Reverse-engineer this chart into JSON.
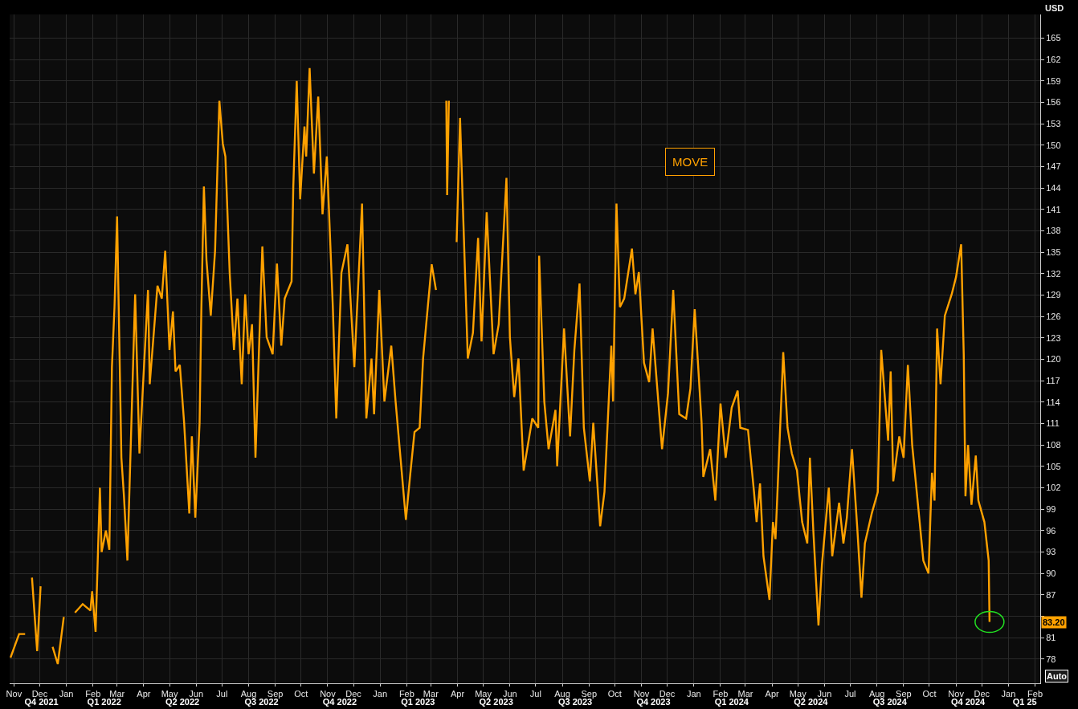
{
  "chart_data": {
    "type": "line",
    "ylabel": "USD",
    "x": [
      "2021-10-28",
      "2021-11-07",
      "2021-11-14",
      "2021-11-17",
      "2021-11-22",
      "2021-11-28",
      "2021-12-02",
      "2021-12-07",
      "2021-12-16",
      "2021-12-22",
      "2021-12-29",
      "2022-01-04",
      "2022-01-11",
      "2022-01-20",
      "2022-01-29",
      "2022-01-31",
      "2022-02-04",
      "2022-02-09",
      "2022-02-11",
      "2022-02-16",
      "2022-02-20",
      "2022-02-23",
      "2022-02-26",
      "2022-03-01",
      "2022-03-06",
      "2022-03-09",
      "2022-03-13",
      "2022-03-22",
      "2022-03-27",
      "2022-04-06",
      "2022-04-08",
      "2022-04-17",
      "2022-04-22",
      "2022-04-26",
      "2022-05-01",
      "2022-05-05",
      "2022-05-08",
      "2022-05-13",
      "2022-05-18",
      "2022-05-24",
      "2022-05-27",
      "2022-05-31",
      "2022-06-05",
      "2022-06-07",
      "2022-06-10",
      "2022-06-13",
      "2022-06-18",
      "2022-06-23",
      "2022-06-28",
      "2022-07-02",
      "2022-07-05",
      "2022-07-10",
      "2022-07-15",
      "2022-07-19",
      "2022-07-24",
      "2022-07-28",
      "2022-08-01",
      "2022-08-05",
      "2022-08-09",
      "2022-08-17",
      "2022-08-22",
      "2022-08-29",
      "2022-09-03",
      "2022-09-08",
      "2022-09-12",
      "2022-09-20",
      "2022-09-22",
      "2022-09-26",
      "2022-09-30",
      "2022-10-05",
      "2022-10-07",
      "2022-10-11",
      "2022-10-16",
      "2022-10-21",
      "2022-10-26",
      "2022-10-31",
      "2022-11-07",
      "2022-11-11",
      "2022-11-17",
      "2022-11-24",
      "2022-12-02",
      "2022-12-11",
      "2022-12-16",
      "2022-12-22",
      "2022-12-25",
      "2022-12-31",
      "2023-01-06",
      "2023-01-14",
      "2023-01-19",
      "2023-01-31",
      "2023-02-05",
      "2023-02-10",
      "2023-02-16",
      "2023-02-20",
      "2023-03-02",
      "2023-03-07",
      "2023-03-10",
      "2023-03-18",
      "2023-03-19",
      "2023-03-20",
      "2023-03-22",
      "2023-03-24",
      "2023-03-31",
      "2023-04-04",
      "2023-04-13",
      "2023-04-19",
      "2023-04-25",
      "2023-04-29",
      "2023-05-05",
      "2023-05-13",
      "2023-05-19",
      "2023-05-28",
      "2023-06-01",
      "2023-06-06",
      "2023-06-11",
      "2023-06-17",
      "2023-06-27",
      "2023-07-04",
      "2023-07-05",
      "2023-07-11",
      "2023-07-16",
      "2023-07-24",
      "2023-07-26",
      "2023-08-03",
      "2023-08-10",
      "2023-08-15",
      "2023-08-21",
      "2023-08-26",
      "2023-09-02",
      "2023-09-06",
      "2023-09-14",
      "2023-09-19",
      "2023-09-27",
      "2023-09-29",
      "2023-10-03",
      "2023-10-07",
      "2023-10-12",
      "2023-10-21",
      "2023-10-25",
      "2023-10-29",
      "2023-11-04",
      "2023-11-10",
      "2023-11-14",
      "2023-11-25",
      "2023-12-02",
      "2023-12-08",
      "2023-12-15",
      "2023-12-23",
      "2023-12-28",
      "2024-01-02",
      "2024-01-10",
      "2024-01-12",
      "2024-01-20",
      "2024-01-26",
      "2024-02-01",
      "2024-02-07",
      "2024-02-14",
      "2024-02-21",
      "2024-02-24",
      "2024-03-04",
      "2024-03-11",
      "2024-03-14",
      "2024-03-18",
      "2024-03-22",
      "2024-03-29",
      "2024-04-02",
      "2024-04-05",
      "2024-04-10",
      "2024-04-14",
      "2024-04-19",
      "2024-04-24",
      "2024-04-30",
      "2024-05-06",
      "2024-05-12",
      "2024-05-15",
      "2024-05-19",
      "2024-05-25",
      "2024-05-29",
      "2024-06-06",
      "2024-06-10",
      "2024-06-18",
      "2024-06-23",
      "2024-06-27",
      "2024-07-03",
      "2024-07-09",
      "2024-07-14",
      "2024-07-18",
      "2024-07-26",
      "2024-08-02",
      "2024-08-06",
      "2024-08-14",
      "2024-08-17",
      "2024-08-20",
      "2024-08-27",
      "2024-09-01",
      "2024-09-06",
      "2024-09-11",
      "2024-09-19",
      "2024-09-24",
      "2024-09-30",
      "2024-10-04",
      "2024-10-07",
      "2024-10-10",
      "2024-10-14",
      "2024-10-19",
      "2024-10-27",
      "2024-11-01",
      "2024-11-07",
      "2024-11-10",
      "2024-11-12",
      "2024-11-15",
      "2024-11-19",
      "2024-11-24",
      "2024-11-27",
      "2024-12-04",
      "2024-12-09",
      "2024-12-10"
    ],
    "series": [
      {
        "name": "MOVE",
        "color": "#ffa100",
        "values": [
          78.2,
          81.5,
          81.5,
          null,
          89.4,
          79.1,
          88.2,
          null,
          79.7,
          77.3,
          83.9,
          null,
          84.5,
          85.7,
          84.8,
          87.5,
          81.8,
          102.0,
          93.0,
          96.0,
          93.3,
          118.9,
          127.3,
          140.0,
          106.2,
          100.8,
          91.8,
          129.1,
          106.8,
          129.7,
          116.5,
          130.3,
          128.5,
          135.2,
          121.3,
          126.7,
          118.3,
          119.2,
          111.1,
          98.4,
          109.2,
          97.8,
          111.1,
          126.7,
          144.2,
          133.9,
          126.1,
          135.2,
          156.2,
          150.2,
          148.4,
          132.1,
          121.3,
          128.5,
          116.5,
          129.1,
          120.7,
          124.9,
          106.2,
          135.8,
          123.1,
          120.7,
          133.4,
          121.9,
          128.5,
          130.9,
          144.2,
          159.0,
          142.4,
          152.6,
          148.4,
          160.8,
          146.0,
          156.8,
          140.3,
          148.4,
          127.3,
          111.7,
          132.1,
          136.1,
          118.9,
          141.8,
          111.7,
          120.1,
          112.3,
          129.7,
          114.1,
          121.9,
          114.1,
          97.5,
          103.8,
          109.8,
          110.4,
          120.1,
          133.3,
          129.7,
          null,
          null,
          156.2,
          143.0,
          156.2,
          null,
          136.4,
          153.8,
          120.1,
          123.7,
          137.0,
          122.5,
          140.6,
          120.7,
          124.9,
          145.4,
          123.1,
          114.7,
          120.1,
          104.4,
          111.7,
          110.4,
          134.5,
          114.1,
          107.4,
          112.9,
          105.0,
          124.3,
          109.2,
          121.3,
          130.6,
          110.4,
          102.9,
          111.1,
          96.6,
          101.4,
          121.9,
          114.1,
          141.8,
          127.3,
          128.5,
          135.5,
          129.1,
          132.2,
          119.5,
          116.8,
          124.3,
          107.4,
          115.3,
          129.7,
          112.3,
          111.7,
          115.9,
          127.0,
          111.1,
          103.5,
          107.4,
          100.2,
          113.8,
          106.2,
          113.2,
          115.6,
          110.4,
          110.1,
          101.4,
          97.2,
          102.6,
          92.4,
          86.3,
          97.2,
          94.8,
          109.2,
          121.0,
          110.4,
          106.8,
          104.4,
          97.2,
          94.2,
          106.2,
          96.0,
          82.7,
          91.2,
          102.0,
          92.4,
          99.9,
          94.2,
          97.8,
          107.4,
          96.6,
          86.6,
          94.2,
          98.4,
          101.4,
          121.3,
          108.6,
          118.3,
          102.9,
          109.2,
          106.2,
          119.2,
          108.0,
          98.1,
          91.8,
          90.0,
          104.1,
          100.2,
          124.3,
          116.5,
          126.1,
          129.1,
          131.5,
          136.1,
          120.7,
          100.8,
          108.0,
          99.6,
          106.5,
          100.2,
          97.2,
          91.8,
          83.2
        ]
      }
    ],
    "xlim": [
      "2021-10-27",
      "2025-02-07"
    ],
    "xticks": [
      {
        "value": "2021-11-01",
        "label": "Nov"
      },
      {
        "value": "2021-12-01",
        "label": "Dec"
      },
      {
        "value": "2022-01-01",
        "label": "Jan"
      },
      {
        "value": "2022-02-01",
        "label": "Feb"
      },
      {
        "value": "2022-03-01",
        "label": "Mar"
      },
      {
        "value": "2022-04-01",
        "label": "Apr"
      },
      {
        "value": "2022-05-01",
        "label": "May"
      },
      {
        "value": "2022-06-01",
        "label": "Jun"
      },
      {
        "value": "2022-07-01",
        "label": "Jul"
      },
      {
        "value": "2022-08-01",
        "label": "Aug"
      },
      {
        "value": "2022-09-01",
        "label": "Sep"
      },
      {
        "value": "2022-10-01",
        "label": "Oct"
      },
      {
        "value": "2022-11-01",
        "label": "Nov"
      },
      {
        "value": "2022-12-01",
        "label": "Dec"
      },
      {
        "value": "2023-01-01",
        "label": "Jan"
      },
      {
        "value": "2023-02-01",
        "label": "Feb"
      },
      {
        "value": "2023-03-01",
        "label": "Mar"
      },
      {
        "value": "2023-04-01",
        "label": "Apr"
      },
      {
        "value": "2023-05-01",
        "label": "May"
      },
      {
        "value": "2023-06-01",
        "label": "Jun"
      },
      {
        "value": "2023-07-01",
        "label": "Jul"
      },
      {
        "value": "2023-08-01",
        "label": "Aug"
      },
      {
        "value": "2023-09-01",
        "label": "Sep"
      },
      {
        "value": "2023-10-01",
        "label": "Oct"
      },
      {
        "value": "2023-11-01",
        "label": "Nov"
      },
      {
        "value": "2023-12-01",
        "label": "Dec"
      },
      {
        "value": "2024-01-01",
        "label": "Jan"
      },
      {
        "value": "2024-02-01",
        "label": "Feb"
      },
      {
        "value": "2024-03-01",
        "label": "Mar"
      },
      {
        "value": "2024-04-01",
        "label": "Apr"
      },
      {
        "value": "2024-05-01",
        "label": "May"
      },
      {
        "value": "2024-06-01",
        "label": "Jun"
      },
      {
        "value": "2024-07-01",
        "label": "Jul"
      },
      {
        "value": "2024-08-01",
        "label": "Aug"
      },
      {
        "value": "2024-09-01",
        "label": "Sep"
      },
      {
        "value": "2024-10-01",
        "label": "Oct"
      },
      {
        "value": "2024-11-01",
        "label": "Nov"
      },
      {
        "value": "2024-12-01",
        "label": "Dec"
      },
      {
        "value": "2025-01-01",
        "label": "Jan"
      },
      {
        "value": "2025-02-01",
        "label": "Feb"
      }
    ],
    "x2lim": [
      "2021-10-27",
      "2025-02-07"
    ],
    "x2ticks": [
      {
        "value": "2021-12-03",
        "label": "Q4 2021"
      },
      {
        "value": "2022-02-14",
        "label": "Q1 2022"
      },
      {
        "value": "2022-05-16",
        "label": "Q2 2022"
      },
      {
        "value": "2022-08-16",
        "label": "Q3 2022"
      },
      {
        "value": "2022-11-15",
        "label": "Q4 2022"
      },
      {
        "value": "2023-02-14",
        "label": "Q1 2023"
      },
      {
        "value": "2023-05-16",
        "label": "Q2 2023"
      },
      {
        "value": "2023-08-16",
        "label": "Q3 2023"
      },
      {
        "value": "2023-11-15",
        "label": "Q4 2023"
      },
      {
        "value": "2024-02-14",
        "label": "Q1 2024"
      },
      {
        "value": "2024-05-16",
        "label": "Q2 2024"
      },
      {
        "value": "2024-08-16",
        "label": "Q3 2024"
      },
      {
        "value": "2024-11-15",
        "label": "Q4 2024"
      },
      {
        "value": "2025-01-20",
        "label": "Q1 25"
      }
    ],
    "ylim": [
      74.6,
      168.3
    ],
    "yticks": [
      78,
      81,
      {
        "value": 84,
        "label": null
      },
      87,
      90,
      93,
      96,
      99,
      102,
      105,
      108,
      111,
      114,
      117,
      120,
      123,
      126,
      129,
      132,
      135,
      138,
      141,
      144,
      147,
      150,
      153,
      156,
      159,
      162,
      165
    ],
    "grid": true,
    "annotations": [
      {
        "text": "83.20",
        "y": 83.2
      },
      "Auto"
    ]
  }
}
